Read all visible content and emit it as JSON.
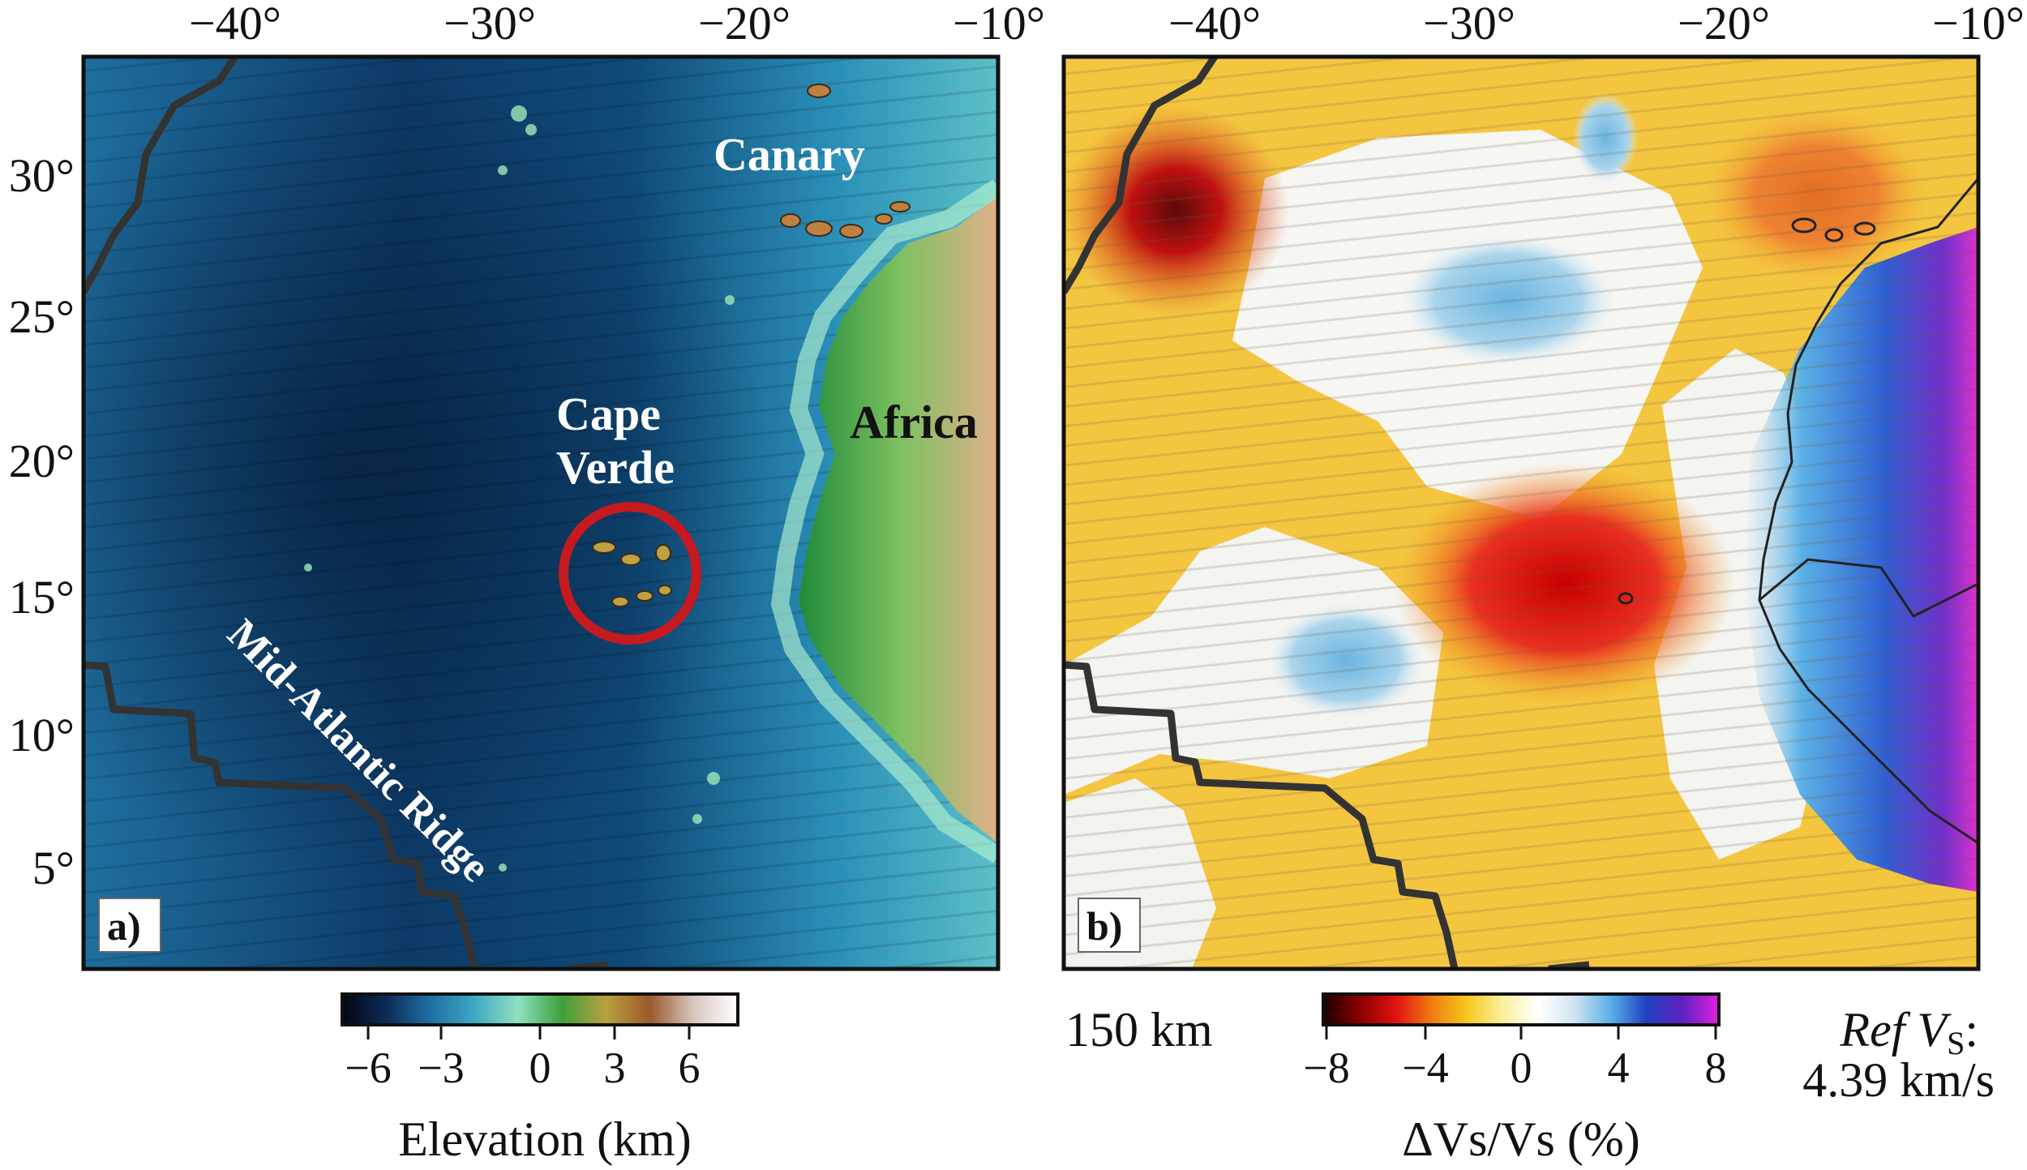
{
  "maps": {
    "lon_ticks": [
      "−40°",
      "−30°",
      "−20°",
      "−10°"
    ],
    "lat_ticks": [
      "30°",
      "25°",
      "20°",
      "15°",
      "10°",
      "5°"
    ],
    "panel_a": {
      "tag": "a)",
      "labels": {
        "canary": "Canary",
        "africa": "Africa",
        "cape_line1": "Cape",
        "cape_line2": "Verde",
        "ridge": "Mid-Atlantic Ridge"
      },
      "colorbar": {
        "ticks": [
          "−6",
          "−3",
          "0",
          "3",
          "6"
        ],
        "label": "Elevation (km)",
        "colors": [
          "#050510",
          "#0d2b55",
          "#1f6fa3",
          "#3ea8c4",
          "#8fe0c0",
          "#3fa03a",
          "#b8a040",
          "#9a5a2a",
          "#d8c8c0",
          "#ffffff"
        ]
      },
      "highlight_color": "#c41a20"
    },
    "panel_b": {
      "tag": "b)",
      "depth": "150 km",
      "ref_line1": "Ref V",
      "ref_sub": "S",
      "ref_line1_end": ":",
      "ref_line2": "4.39 km/s",
      "colorbar": {
        "ticks": [
          "−8",
          "−4",
          "0",
          "4",
          "8"
        ],
        "label": "ΔVs/Vs (%)",
        "colors": [
          "#1a0000",
          "#8a0000",
          "#e01010",
          "#f07a10",
          "#f6c820",
          "#fbf0a0",
          "#ffffff",
          "#cfe4f0",
          "#5ab0e6",
          "#2040c0",
          "#6020c0",
          "#e020e0"
        ]
      }
    }
  }
}
